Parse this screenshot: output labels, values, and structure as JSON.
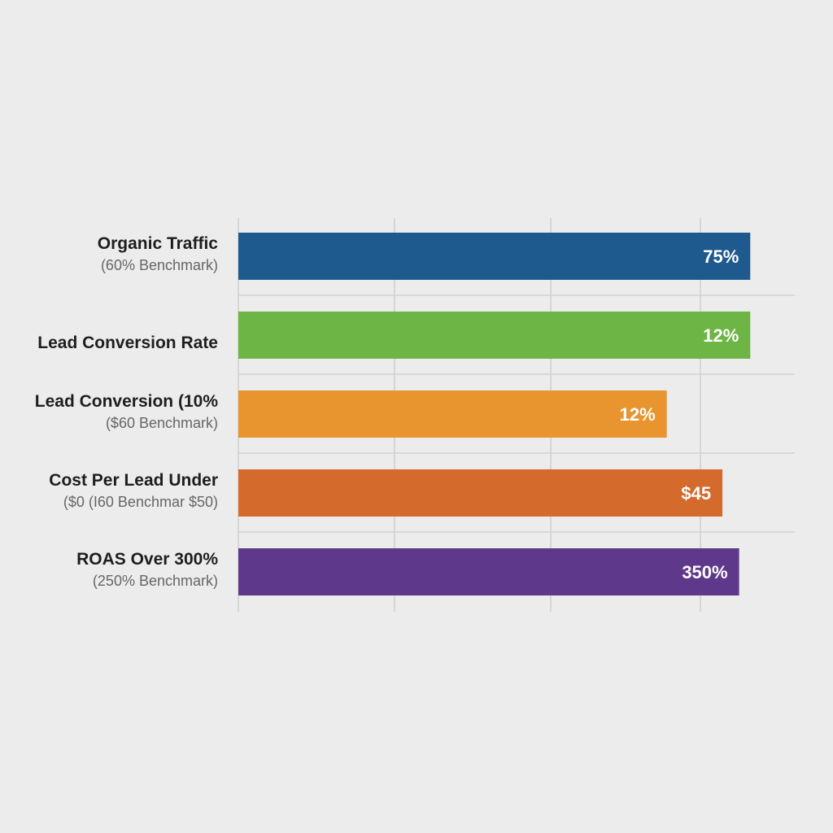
{
  "chart_data": {
    "type": "bar",
    "orientation": "horizontal",
    "title": "",
    "xlabel": "",
    "ylabel": "",
    "grid": true,
    "categories": [
      {
        "label": "Organic Traffic",
        "sublabel": "(60% Benchmark)"
      },
      {
        "label": "Lead Conversion Rate",
        "sublabel": ""
      },
      {
        "label": "Lead Conversion (10%",
        "sublabel": "($60 Benchmark)"
      },
      {
        "label": "Cost Per Lead Under",
        "sublabel": "($0 (I60 Benchmar $50)"
      },
      {
        "label": "ROAS Over 300%",
        "sublabel": "(250% Benchmark)"
      }
    ],
    "value_labels": [
      "75%",
      "12%",
      "12%",
      "$45",
      "350%"
    ],
    "bar_extent_fraction": [
      0.92,
      0.92,
      0.77,
      0.87,
      0.9
    ],
    "colors": [
      "#1f5a8f",
      "#6db544",
      "#e8952f",
      "#d46a2c",
      "#5e388a"
    ]
  }
}
